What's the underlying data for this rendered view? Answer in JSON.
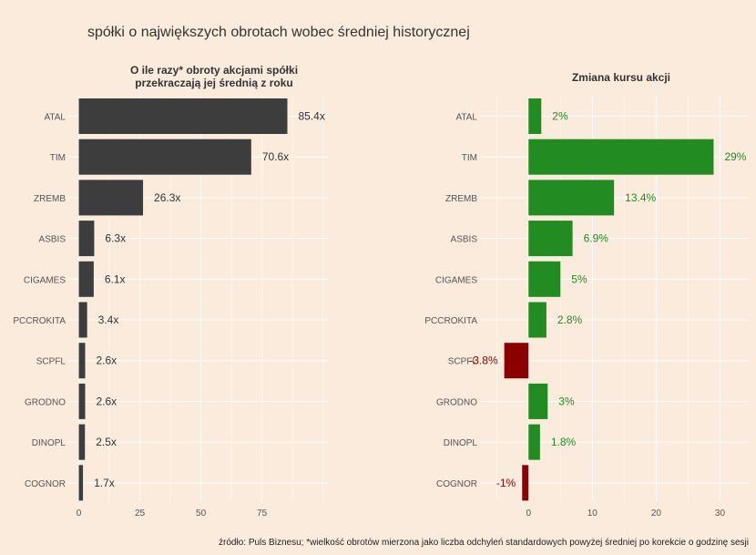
{
  "title": "spółki o największych obrotach wobec średniej historycznej",
  "caption": "źródło: Puls Biznesu; *wielkość obrotów mierzona jako liczba odchyleń standardowych powyżej średniej po korekcie o godzinę sesji",
  "colors": {
    "background": "#faebdd",
    "grid": "#ffffff",
    "turnover_bar": "#3d3d3d",
    "positive": "#228b22",
    "negative": "#8b0000",
    "text": "#333333",
    "tick": "#555555"
  },
  "chart_data": [
    {
      "type": "bar",
      "orientation": "horizontal",
      "title": "O ile razy* obroty akcjami spółki przekraczają jej średnią z roku",
      "title_lines": [
        "O ile razy* obroty akcjami spółki",
        "przekraczają jej średnią z roku"
      ],
      "categories": [
        "ATAL",
        "TIM",
        "ZREMB",
        "ASBIS",
        "CIGAMES",
        "PCCROKITA",
        "SCPFL",
        "GRODNO",
        "DINOPL",
        "COGNOR"
      ],
      "values": [
        85.4,
        70.6,
        26.3,
        6.3,
        6.1,
        3.4,
        2.6,
        2.6,
        2.5,
        1.7
      ],
      "data_labels": [
        "85.4x",
        "70.6x",
        "26.3x",
        "6.3x",
        "6.1x",
        "3.4x",
        "2.6x",
        "2.6x",
        "2.5x",
        "1.7x"
      ],
      "xlim": [
        -4.3,
        102
      ],
      "xticks": [
        0,
        25,
        50,
        75
      ],
      "xtick_labels": [
        "0",
        "25",
        "50",
        "75"
      ],
      "grid": true
    },
    {
      "type": "bar",
      "orientation": "horizontal",
      "title": "Zmiana kursu akcji",
      "categories": [
        "ATAL",
        "TIM",
        "ZREMB",
        "ASBIS",
        "CIGAMES",
        "PCCROKITA",
        "SCPFL",
        "GRODNO",
        "DINOPL",
        "COGNOR"
      ],
      "values": [
        2,
        29,
        13.4,
        6.9,
        5,
        2.8,
        -3.8,
        3,
        1.8,
        -1
      ],
      "data_labels": [
        "2%",
        "29%",
        "13.4%",
        "6.9%",
        "5%",
        "2.8%",
        "-3.8%",
        "3%",
        "1.8%",
        "-1%"
      ],
      "xlim": [
        -7.6,
        34.5
      ],
      "xticks": [
        0,
        10,
        20,
        30
      ],
      "xtick_labels": [
        "0",
        "10",
        "20",
        "30"
      ],
      "grid": true
    }
  ]
}
